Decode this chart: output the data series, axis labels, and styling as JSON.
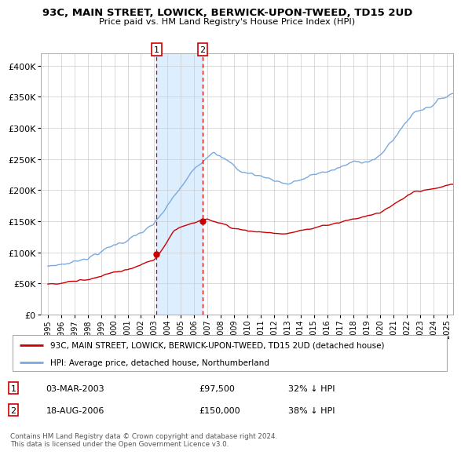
{
  "title": "93C, MAIN STREET, LOWICK, BERWICK-UPON-TWEED, TD15 2UD",
  "subtitle": "Price paid vs. HM Land Registry's House Price Index (HPI)",
  "legend_house": "93C, MAIN STREET, LOWICK, BERWICK-UPON-TWEED, TD15 2UD (detached house)",
  "legend_hpi": "HPI: Average price, detached house, Northumberland",
  "transaction1_date": "03-MAR-2003",
  "transaction1_price": "£97,500",
  "transaction1_pct": "32% ↓ HPI",
  "transaction2_date": "18-AUG-2006",
  "transaction2_price": "£150,000",
  "transaction2_pct": "38% ↓ HPI",
  "footer": "Contains HM Land Registry data © Crown copyright and database right 2024.\nThis data is licensed under the Open Government Licence v3.0.",
  "house_color": "#cc0000",
  "hpi_color": "#7aaadd",
  "shading_color": "#ddeeff",
  "marker1_x": 2003.17,
  "marker1_y": 97500,
  "marker2_x": 2006.63,
  "marker2_y": 150000,
  "vline1_x": 2003.17,
  "vline2_x": 2006.63,
  "ylim": [
    0,
    420000
  ],
  "xlim": [
    1994.5,
    2025.5
  ]
}
